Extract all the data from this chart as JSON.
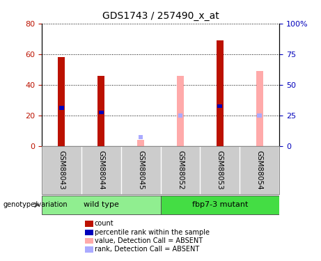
{
  "title": "GDS1743 / 257490_x_at",
  "samples": [
    "GSM88043",
    "GSM88044",
    "GSM88045",
    "GSM88052",
    "GSM88053",
    "GSM88054"
  ],
  "groups": [
    {
      "label": "wild type",
      "indices": [
        0,
        1,
        2
      ],
      "color": "#90EE90"
    },
    {
      "label": "fbp7-3 mutant",
      "indices": [
        3,
        4,
        5
      ],
      "color": "#44DD44"
    }
  ],
  "count_values": [
    58,
    46,
    0,
    0,
    69,
    0
  ],
  "count_absent_values": [
    0,
    0,
    4,
    46,
    0,
    49
  ],
  "percentile_values": [
    25,
    22,
    0,
    0,
    26,
    0
  ],
  "percentile_absent_values": [
    0,
    0,
    6,
    20,
    0,
    20
  ],
  "count_color": "#BB1100",
  "count_absent_color": "#FFAAAA",
  "percentile_color": "#0000BB",
  "percentile_absent_color": "#AAAAFF",
  "ylim_left": [
    0,
    80
  ],
  "ylim_right": [
    0,
    100
  ],
  "yticks_left": [
    0,
    20,
    40,
    60,
    80
  ],
  "yticks_right": [
    0,
    25,
    50,
    75,
    100
  ],
  "ytick_labels_right": [
    "0",
    "25",
    "50",
    "75",
    "100%"
  ],
  "bar_width": 0.18,
  "pct_bar_width": 0.12,
  "bg_color": "#CCCCCC",
  "plot_bg": "white",
  "legend_items": [
    {
      "label": "count",
      "color": "#BB1100"
    },
    {
      "label": "percentile rank within the sample",
      "color": "#0000BB"
    },
    {
      "label": "value, Detection Call = ABSENT",
      "color": "#FFAAAA"
    },
    {
      "label": "rank, Detection Call = ABSENT",
      "color": "#AAAAFF"
    }
  ]
}
